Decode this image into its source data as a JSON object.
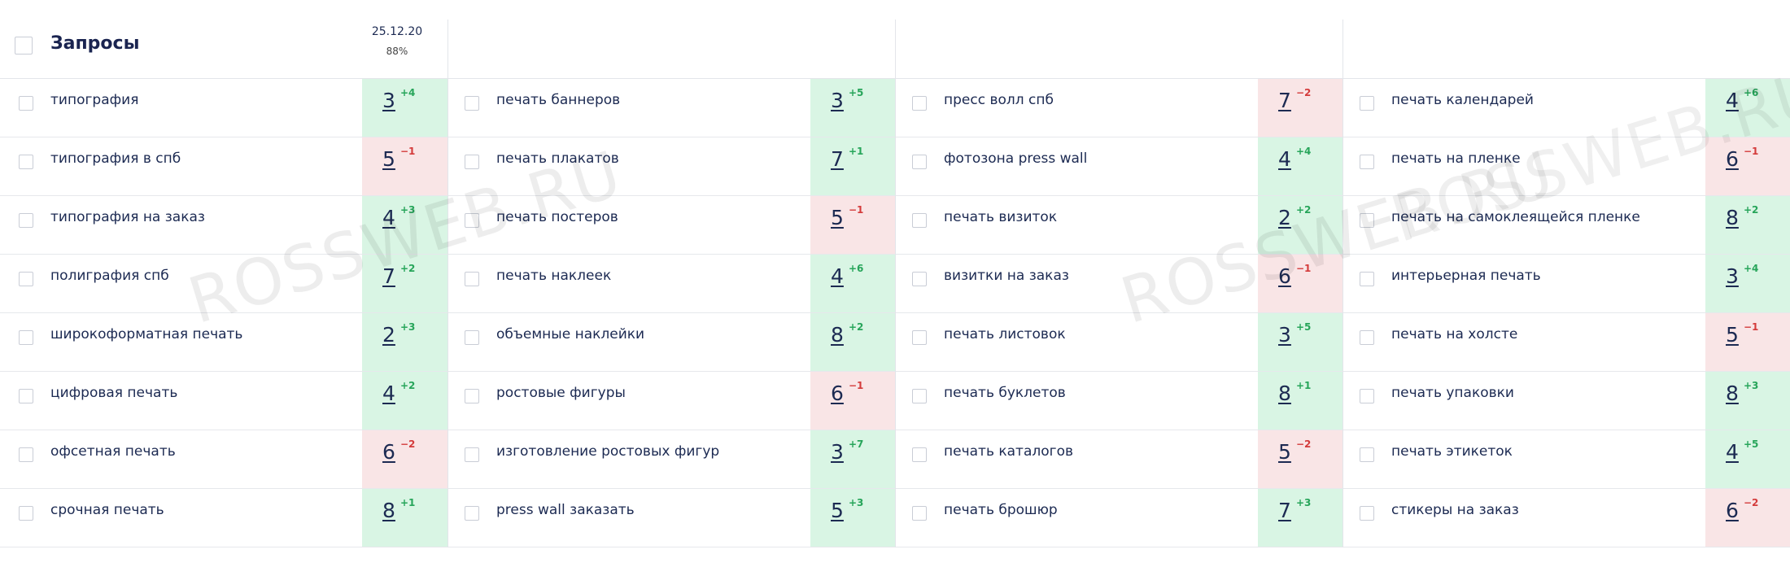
{
  "header": {
    "title": "Запросы",
    "date": "25.12.20",
    "percent": "88%"
  },
  "watermarks": [
    "ROSSWEB.RU",
    "ROSSWEB.RU",
    "ROSSWEB.RU"
  ],
  "colors": {
    "up_bg": "#d9f5e4",
    "down_bg": "#f9e5e6",
    "up_text": "#27a55a",
    "down_text": "#d43b3b"
  },
  "columns": [
    {
      "rows": [
        {
          "keyword": "типография",
          "position": "3",
          "delta": "+4",
          "trend": "up"
        },
        {
          "keyword": "типография в спб",
          "position": "5",
          "delta": "−1",
          "trend": "down"
        },
        {
          "keyword": "типография на заказ",
          "position": "4",
          "delta": "+3",
          "trend": "up"
        },
        {
          "keyword": "полиграфия спб",
          "position": "7",
          "delta": "+2",
          "trend": "up"
        },
        {
          "keyword": "широкоформатная печать",
          "position": "2",
          "delta": "+3",
          "trend": "up"
        },
        {
          "keyword": "цифровая печать",
          "position": "4",
          "delta": "+2",
          "trend": "up"
        },
        {
          "keyword": "офсетная печать",
          "position": "6",
          "delta": "−2",
          "trend": "down"
        },
        {
          "keyword": "срочная печать",
          "position": "8",
          "delta": "+1",
          "trend": "up"
        }
      ]
    },
    {
      "rows": [
        {
          "keyword": "печать баннеров",
          "position": "3",
          "delta": "+5",
          "trend": "up"
        },
        {
          "keyword": "печать плакатов",
          "position": "7",
          "delta": "+1",
          "trend": "up"
        },
        {
          "keyword": "печать постеров",
          "position": "5",
          "delta": "−1",
          "trend": "down"
        },
        {
          "keyword": "печать наклеек",
          "position": "4",
          "delta": "+6",
          "trend": "up"
        },
        {
          "keyword": "объемные наклейки",
          "position": "8",
          "delta": "+2",
          "trend": "up"
        },
        {
          "keyword": "ростовые фигуры",
          "position": "6",
          "delta": "−1",
          "trend": "down"
        },
        {
          "keyword": "изготовление ростовых фигур",
          "position": "3",
          "delta": "+7",
          "trend": "up"
        },
        {
          "keyword": "press wall заказать",
          "position": "5",
          "delta": "+3",
          "trend": "up"
        }
      ]
    },
    {
      "rows": [
        {
          "keyword": "пресс волл спб",
          "position": "7",
          "delta": "−2",
          "trend": "down"
        },
        {
          "keyword": "фотозона press wall",
          "position": "4",
          "delta": "+4",
          "trend": "up"
        },
        {
          "keyword": "печать визиток",
          "position": "2",
          "delta": "+2",
          "trend": "up"
        },
        {
          "keyword": "визитки на заказ",
          "position": "6",
          "delta": "−1",
          "trend": "down"
        },
        {
          "keyword": "печать листовок",
          "position": "3",
          "delta": "+5",
          "trend": "up"
        },
        {
          "keyword": "печать буклетов",
          "position": "8",
          "delta": "+1",
          "trend": "up"
        },
        {
          "keyword": "печать каталогов",
          "position": "5",
          "delta": "−2",
          "trend": "down"
        },
        {
          "keyword": "печать брошюр",
          "position": "7",
          "delta": "+3",
          "trend": "up"
        }
      ]
    },
    {
      "rows": [
        {
          "keyword": "печать календарей",
          "position": "4",
          "delta": "+6",
          "trend": "up"
        },
        {
          "keyword": "печать на пленке",
          "position": "6",
          "delta": "−1",
          "trend": "down"
        },
        {
          "keyword": "печать на самоклеящейся пленке",
          "position": "8",
          "delta": "+2",
          "trend": "up"
        },
        {
          "keyword": "интерьерная печать",
          "position": "3",
          "delta": "+4",
          "trend": "up"
        },
        {
          "keyword": "печать на холсте",
          "position": "5",
          "delta": "−1",
          "trend": "down"
        },
        {
          "keyword": "печать упаковки",
          "position": "8",
          "delta": "+3",
          "trend": "up"
        },
        {
          "keyword": "печать этикеток",
          "position": "4",
          "delta": "+5",
          "trend": "up"
        },
        {
          "keyword": "стикеры на заказ",
          "position": "6",
          "delta": "−2",
          "trend": "down"
        }
      ]
    }
  ]
}
